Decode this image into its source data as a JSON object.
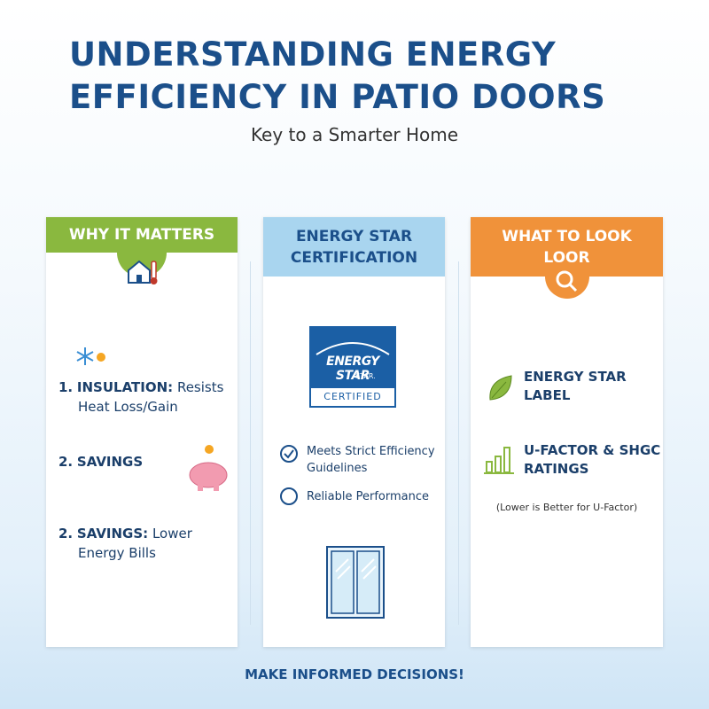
{
  "header": {
    "title_lines": [
      "UNDERSTANDING ENERGY",
      "EFFICIENCY IN PATIO DOORS"
    ],
    "subtitle": "Key to a Smarter Home"
  },
  "columns": [
    {
      "header_lines": [
        "WHY IT MATTERS"
      ],
      "items": [
        {
          "number": "1.",
          "label": "INSULATION:",
          "text": "Resists Heat Loss/Gain"
        },
        {
          "number": "2.",
          "label": "SAVINGS"
        },
        {
          "number": "2.",
          "label": "SAVINGS:",
          "text": "Lower Energy Bills"
        }
      ]
    },
    {
      "header_lines": [
        "ENERGY STAR",
        "CERTIFICATION"
      ],
      "logo": {
        "brand": "ENERGY STAR",
        "small": "STAR.",
        "badge": "CERTIFIED"
      },
      "items": [
        "Meets Strict Efficiency Guidelines",
        "Reliable Performance"
      ]
    },
    {
      "header_lines": [
        "WHAT TO LOOK",
        "LOOR"
      ],
      "items": [
        "ENERGY STAR LABEL",
        "U-FACTOR & SHGC RATINGS"
      ],
      "note": "(Lower is Better for U-Factor)"
    }
  ],
  "footer": "MAKE INFORMED DECISIONS!"
}
